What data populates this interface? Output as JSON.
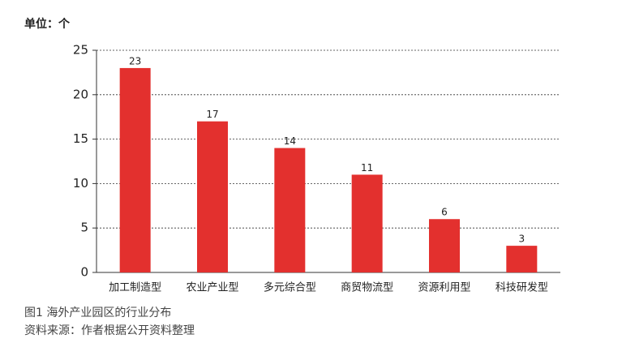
{
  "chart_data": {
    "type": "bar",
    "y_label": "单位：个",
    "title": "图1 海外产业园区的行业分布",
    "source": "资料来源：作者根据公开资料整理",
    "categories": [
      "加工制造型",
      "农业产业型",
      "多元综合型",
      "商贸物流型",
      "资源利用型",
      "科技研发型"
    ],
    "values": [
      23,
      17,
      14,
      11,
      6,
      3
    ],
    "color": "#e3302e",
    "ylim": [
      0,
      25
    ],
    "yticks": [
      0,
      5,
      10,
      15,
      20,
      25
    ],
    "grid": true
  }
}
